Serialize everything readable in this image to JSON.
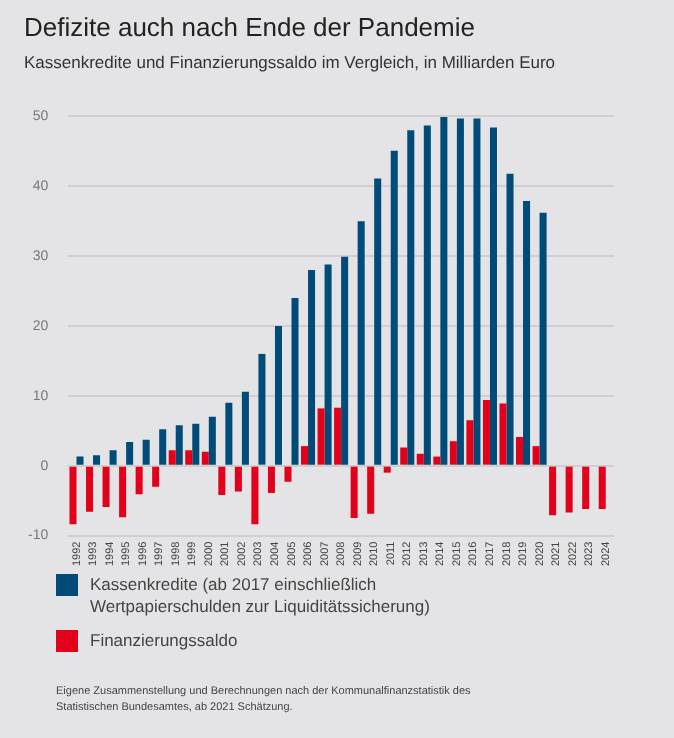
{
  "chart_data": {
    "type": "bar",
    "title": "Defizite auch nach Ende der Pandemie",
    "subtitle": "Kassenkredite und Finanzierungssaldo im Vergleich, in Milliarden Euro",
    "categories": [
      "1992",
      "1993",
      "1994",
      "1995",
      "1996",
      "1997",
      "1998",
      "1999",
      "2000",
      "2001",
      "2002",
      "2003",
      "2004",
      "2005",
      "2006",
      "2007",
      "2008",
      "2009",
      "2010",
      "2011",
      "2012",
      "2013",
      "2014",
      "2015",
      "2016",
      "2017",
      "2018",
      "2019",
      "2020",
      "2021",
      "2022",
      "2023",
      "2024"
    ],
    "series": [
      {
        "name": "Kassenkredite (ab 2017 einschließlich Wertpapierschulden zur Liquiditätssicherung)",
        "color": "#004b78",
        "values": [
          1.3,
          1.5,
          2.2,
          3.4,
          3.7,
          5.2,
          5.8,
          6.0,
          7.0,
          9.0,
          10.6,
          16.0,
          20.0,
          24.0,
          28.0,
          28.8,
          29.9,
          35.0,
          41.1,
          45.1,
          48.0,
          48.7,
          49.9,
          49.7,
          49.7,
          48.4,
          41.8,
          37.9,
          36.2,
          null,
          null,
          null,
          null
        ]
      },
      {
        "name": "Finanzierungssaldo",
        "color": "#e2001a",
        "values": [
          -8.4,
          -6.6,
          -5.9,
          -7.4,
          -4.1,
          -3.0,
          2.2,
          2.2,
          2.0,
          -4.2,
          -3.7,
          -8.4,
          -3.9,
          -2.3,
          2.8,
          8.2,
          8.3,
          -7.5,
          -6.9,
          -1.0,
          2.6,
          1.7,
          1.3,
          3.5,
          6.5,
          9.4,
          8.9,
          4.1,
          2.8,
          -7.1,
          -6.7,
          -6.2,
          -6.2
        ]
      }
    ],
    "ylim": [
      -10,
      50
    ],
    "yticks": [
      -10,
      0,
      10,
      20,
      30,
      40,
      50
    ],
    "grid": "y",
    "legend": "bottom",
    "annotations": [
      "Eigene Zusammenstellung und Berechnungen nach der Kommunalfinanzstatistik des Statistischen Bundesamtes, ab 2021 Schätzung."
    ]
  }
}
